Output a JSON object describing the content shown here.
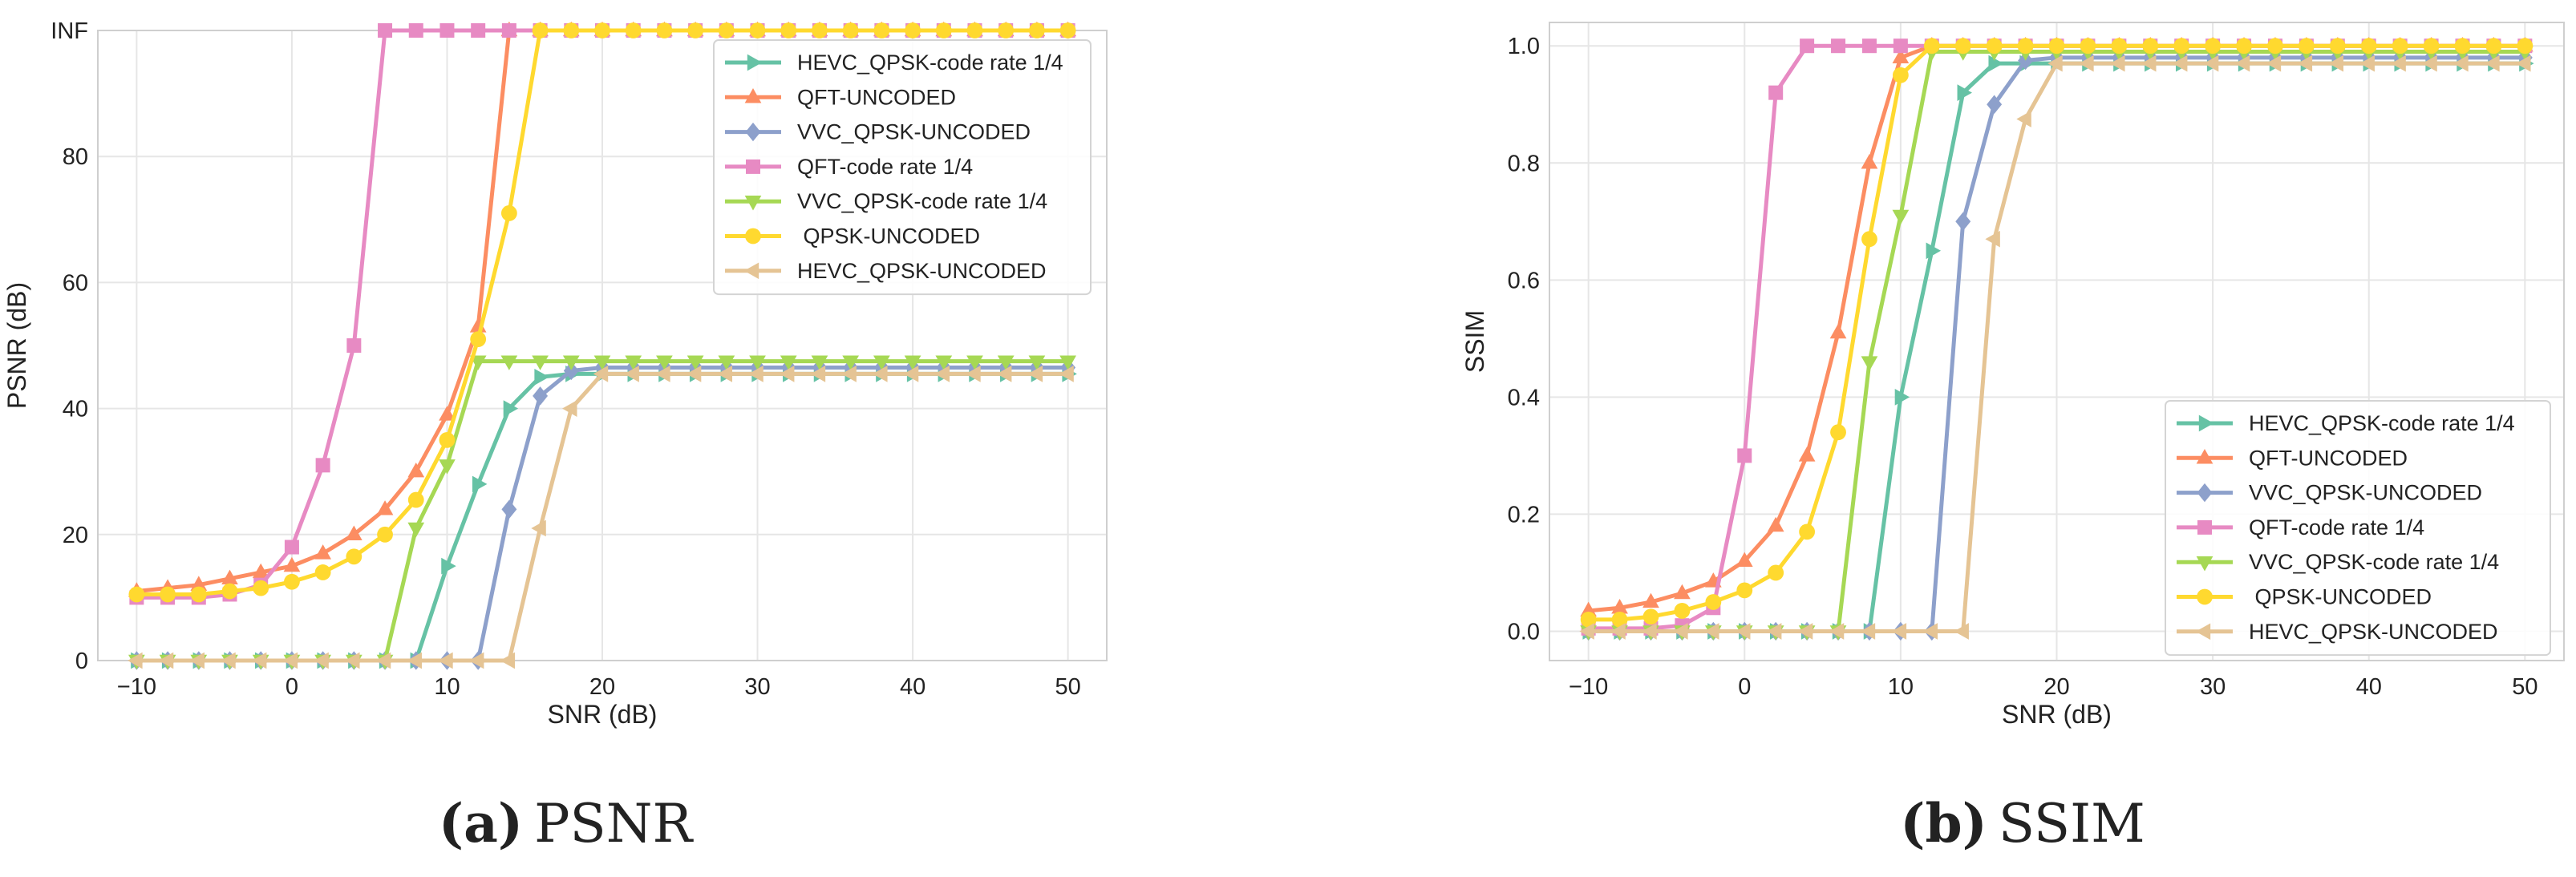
{
  "colors": {
    "HEVC_QPSK-code rate 1/4": "#66c2a5",
    "QFT-UNCODED": "#fc8d62",
    "VVC_QPSK-UNCODED": "#8da0cb",
    "QFT-code rate 1/4": "#e78ac3",
    "VVC_QPSK-code rate 1/4": "#a6d854",
    "QPSK-UNCODED": "#ffd92f",
    "HEVC_QPSK-UNCODED": "#e5c494",
    "grid": "#e6e6e6",
    "axes": "#cfcfcf"
  },
  "chart_data": [
    {
      "type": "line",
      "caption_letter": "(a)",
      "caption_text": "PSNR",
      "xlabel": "SNR (dB)",
      "ylabel": "PSNR (dB)",
      "xlim": [
        -12.5,
        52.5
      ],
      "ylim": [
        0,
        100
      ],
      "xticks": [
        -10,
        0,
        10,
        20,
        30,
        40,
        50
      ],
      "xtick_labels": [
        "−10",
        "0",
        "10",
        "20",
        "30",
        "40",
        "50"
      ],
      "yticks": [
        0,
        20,
        40,
        60,
        80,
        100
      ],
      "ytick_labels": [
        "0",
        "20",
        "40",
        "60",
        "80",
        "INF"
      ],
      "grid": true,
      "legend_position": "top-right",
      "x": [
        -10,
        -8,
        -6,
        -4,
        -2,
        0,
        2,
        4,
        6,
        8,
        10,
        12,
        14,
        16,
        18,
        20,
        22,
        24,
        26,
        28,
        30,
        32,
        34,
        36,
        38,
        40,
        42,
        44,
        46,
        48,
        50
      ],
      "series": [
        {
          "name": "HEVC_QPSK-code rate 1/4",
          "marker": "triangle-right",
          "values": [
            0,
            0,
            0,
            0,
            0,
            0,
            0,
            0,
            0,
            0,
            15,
            28,
            40,
            45,
            45.5,
            45.5,
            45.5,
            45.5,
            45.5,
            45.5,
            45.5,
            45.5,
            45.5,
            45.5,
            45.5,
            45.5,
            45.5,
            45.5,
            45.5,
            45.5,
            45.5
          ]
        },
        {
          "name": "QFT-UNCODED",
          "marker": "triangle-up",
          "values": [
            11,
            11.5,
            12,
            13,
            14,
            15,
            17,
            20,
            24,
            30,
            39,
            53,
            100,
            100,
            100,
            100,
            100,
            100,
            100,
            100,
            100,
            100,
            100,
            100,
            100,
            100,
            100,
            100,
            100,
            100,
            100
          ]
        },
        {
          "name": "VVC_QPSK-UNCODED",
          "marker": "diamond",
          "values": [
            0,
            0,
            0,
            0,
            0,
            0,
            0,
            0,
            0,
            0,
            0,
            0,
            24,
            42,
            46,
            46.5,
            46.5,
            46.5,
            46.5,
            46.5,
            46.5,
            46.5,
            46.5,
            46.5,
            46.5,
            46.5,
            46.5,
            46.5,
            46.5,
            46.5,
            46.5
          ]
        },
        {
          "name": "QFT-code rate 1/4",
          "marker": "square",
          "values": [
            10,
            10,
            10,
            10.5,
            12,
            18,
            31,
            50,
            100,
            100,
            100,
            100,
            100,
            100,
            100,
            100,
            100,
            100,
            100,
            100,
            100,
            100,
            100,
            100,
            100,
            100,
            100,
            100,
            100,
            100,
            100
          ]
        },
        {
          "name": "VVC_QPSK-code rate 1/4",
          "marker": "triangle-down",
          "values": [
            0,
            0,
            0,
            0,
            0,
            0,
            0,
            0,
            0,
            21,
            31,
            47.5,
            47.5,
            47.5,
            47.5,
            47.5,
            47.5,
            47.5,
            47.5,
            47.5,
            47.5,
            47.5,
            47.5,
            47.5,
            47.5,
            47.5,
            47.5,
            47.5,
            47.5,
            47.5,
            47.5
          ]
        },
        {
          "name": " QPSK-UNCODED",
          "marker": "circle",
          "values": [
            10.5,
            10.5,
            10.5,
            11,
            11.5,
            12.5,
            14,
            16.5,
            20,
            25.5,
            35,
            51,
            71,
            100,
            100,
            100,
            100,
            100,
            100,
            100,
            100,
            100,
            100,
            100,
            100,
            100,
            100,
            100,
            100,
            100,
            100
          ]
        },
        {
          "name": "HEVC_QPSK-UNCODED",
          "marker": "triangle-left",
          "values": [
            0,
            0,
            0,
            0,
            0,
            0,
            0,
            0,
            0,
            0,
            0,
            0,
            0,
            21,
            40,
            45.5,
            45.5,
            45.5,
            45.5,
            45.5,
            45.5,
            45.5,
            45.5,
            45.5,
            45.5,
            45.5,
            45.5,
            45.5,
            45.5,
            45.5,
            45.5
          ]
        }
      ]
    },
    {
      "type": "line",
      "caption_letter": "(b)",
      "caption_text": "SSIM",
      "xlabel": "SNR (dB)",
      "ylabel": "SSIM",
      "xlim": [
        -12.5,
        52.5
      ],
      "ylim": [
        -0.05,
        1.04
      ],
      "xticks": [
        -10,
        0,
        10,
        20,
        30,
        40,
        50
      ],
      "xtick_labels": [
        "−10",
        "0",
        "10",
        "20",
        "30",
        "40",
        "50"
      ],
      "yticks": [
        0,
        0.2,
        0.4,
        0.6,
        0.8,
        1.0
      ],
      "ytick_labels": [
        "0.0",
        "0.2",
        "0.4",
        "0.6",
        "0.8",
        "1.0"
      ],
      "grid": true,
      "legend_position": "bottom-right",
      "x": [
        -10,
        -8,
        -6,
        -4,
        -2,
        0,
        2,
        4,
        6,
        8,
        10,
        12,
        14,
        16,
        18,
        20,
        22,
        24,
        26,
        28,
        30,
        32,
        34,
        36,
        38,
        40,
        42,
        44,
        46,
        48,
        50
      ],
      "series": [
        {
          "name": "HEVC_QPSK-code rate 1/4",
          "marker": "triangle-right",
          "values": [
            0,
            0,
            0,
            0,
            0,
            0,
            0,
            0,
            0,
            0,
            0.4,
            0.65,
            0.92,
            0.97,
            0.97,
            0.97,
            0.97,
            0.97,
            0.97,
            0.97,
            0.97,
            0.97,
            0.97,
            0.97,
            0.97,
            0.97,
            0.97,
            0.97,
            0.97,
            0.97,
            0.97
          ]
        },
        {
          "name": "QFT-UNCODED",
          "marker": "triangle-up",
          "values": [
            0.035,
            0.04,
            0.05,
            0.065,
            0.085,
            0.12,
            0.18,
            0.3,
            0.51,
            0.8,
            0.98,
            1.0,
            1.0,
            1.0,
            1.0,
            1.0,
            1.0,
            1.0,
            1.0,
            1.0,
            1.0,
            1.0,
            1.0,
            1.0,
            1.0,
            1.0,
            1.0,
            1.0,
            1.0,
            1.0,
            1.0
          ]
        },
        {
          "name": "VVC_QPSK-UNCODED",
          "marker": "diamond",
          "values": [
            0,
            0,
            0,
            0,
            0,
            0,
            0,
            0,
            0,
            0,
            0,
            0,
            0.7,
            0.9,
            0.975,
            0.98,
            0.98,
            0.98,
            0.98,
            0.98,
            0.98,
            0.98,
            0.98,
            0.98,
            0.98,
            0.98,
            0.98,
            0.98,
            0.98,
            0.98,
            0.98
          ]
        },
        {
          "name": "QFT-code rate 1/4",
          "marker": "square",
          "values": [
            0.005,
            0.005,
            0.005,
            0.01,
            0.04,
            0.3,
            0.92,
            1.0,
            1.0,
            1.0,
            1.0,
            1.0,
            1.0,
            1.0,
            1.0,
            1.0,
            1.0,
            1.0,
            1.0,
            1.0,
            1.0,
            1.0,
            1.0,
            1.0,
            1.0,
            1.0,
            1.0,
            1.0,
            1.0,
            1.0,
            1.0
          ]
        },
        {
          "name": "VVC_QPSK-code rate 1/4",
          "marker": "triangle-down",
          "values": [
            0,
            0,
            0,
            0,
            0,
            0,
            0,
            0,
            0,
            0.46,
            0.71,
            0.99,
            0.99,
            0.99,
            0.99,
            0.99,
            0.99,
            0.99,
            0.99,
            0.99,
            0.99,
            0.99,
            0.99,
            0.99,
            0.99,
            0.99,
            0.99,
            0.99,
            0.99,
            0.99,
            0.99
          ]
        },
        {
          "name": " QPSK-UNCODED",
          "marker": "circle",
          "values": [
            0.02,
            0.02,
            0.025,
            0.035,
            0.05,
            0.07,
            0.1,
            0.17,
            0.34,
            0.67,
            0.95,
            1.0,
            1.0,
            1.0,
            1.0,
            1.0,
            1.0,
            1.0,
            1.0,
            1.0,
            1.0,
            1.0,
            1.0,
            1.0,
            1.0,
            1.0,
            1.0,
            1.0,
            1.0,
            1.0,
            1.0
          ]
        },
        {
          "name": "HEVC_QPSK-UNCODED",
          "marker": "triangle-left",
          "values": [
            0,
            0,
            0,
            0,
            0,
            0,
            0,
            0,
            0,
            0,
            0,
            0,
            0,
            0.67,
            0.875,
            0.97,
            0.97,
            0.97,
            0.97,
            0.97,
            0.97,
            0.97,
            0.97,
            0.97,
            0.97,
            0.97,
            0.97,
            0.97,
            0.97,
            0.97,
            0.97
          ]
        }
      ]
    }
  ]
}
